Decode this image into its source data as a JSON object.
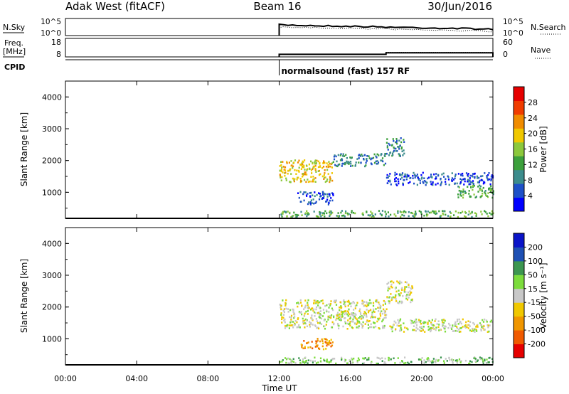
{
  "header": {
    "station": "Adak West (fitACF)",
    "beam": "Beam 16",
    "date": "30/Jun/2016"
  },
  "noise_panel": {
    "left_label": "N.Sky",
    "right_label": "N.Search",
    "left_ticks": [
      "10^5",
      "10^0"
    ],
    "right_ticks": [
      "10^5",
      "10^0"
    ]
  },
  "freq_panel": {
    "left_label_1": "Freq.",
    "left_label_2": "[MHz]",
    "right_label": "Nave",
    "left_ticks": [
      "18",
      "8"
    ],
    "right_ticks": [
      "60",
      "0"
    ],
    "freq_steps": [
      {
        "x": 12,
        "y": 10.0
      },
      {
        "x": 18,
        "y": 11.2
      }
    ],
    "nave_level": 15
  },
  "cpid_panel": {
    "label": "CPID",
    "program": "normalsound (fast) 157 RF",
    "start_hour": 12
  },
  "time_axis": {
    "xlabel": "Time UT",
    "tick_labels": [
      "00:00",
      "04:00",
      "08:00",
      "12:00",
      "16:00",
      "20:00",
      "00:00"
    ],
    "hours": [
      0,
      4,
      8,
      12,
      16,
      20,
      24
    ]
  },
  "colors": {
    "power": [
      "#0000ff",
      "#1e50c8",
      "#3c8c8c",
      "#3ca03c",
      "#8cc83c",
      "#f0c800",
      "#f08c00",
      "#f03c00",
      "#e60000"
    ],
    "velocity": [
      "#e60000",
      "#f05a00",
      "#f09600",
      "#f0c800",
      "#c8c8c8",
      "#7cdc3c",
      "#3c9650",
      "#1e50b4",
      "#0a14c8"
    ]
  },
  "chart_data": [
    {
      "type": "heatmap",
      "name": "power",
      "xlabel": "",
      "ylabel": "Slant Range [km]",
      "xlim": [
        0,
        24
      ],
      "ylim": [
        180,
        4500
      ],
      "yticks": [
        "1000",
        "2000",
        "3000",
        "4000"
      ],
      "colorbar_label": "Power [dB]",
      "colorbar_ticks": [
        "4",
        "8",
        "12",
        "16",
        "20",
        "24",
        "28"
      ],
      "regions": [
        {
          "t0": 12.0,
          "t1": 24.0,
          "r0": 200,
          "r1": 400,
          "level": 3
        },
        {
          "t0": 12.0,
          "t1": 15.0,
          "r0": 1300,
          "r1": 2000,
          "level": 5
        },
        {
          "t0": 15.0,
          "t1": 18.0,
          "r0": 1800,
          "r1": 2200,
          "level": 2
        },
        {
          "t0": 13.0,
          "t1": 15.0,
          "r0": 600,
          "r1": 1000,
          "level": 1
        },
        {
          "t0": 18.0,
          "t1": 24.0,
          "r0": 1200,
          "r1": 1600,
          "level": 1
        },
        {
          "t0": 22.0,
          "t1": 24.0,
          "r0": 800,
          "r1": 1200,
          "level": 3
        },
        {
          "t0": 18.0,
          "t1": 19.0,
          "r0": 2100,
          "r1": 2700,
          "level": 2
        }
      ]
    },
    {
      "type": "heatmap",
      "name": "velocity",
      "xlabel": "Time UT",
      "ylabel": "Slant Range [km]",
      "xlim": [
        0,
        24
      ],
      "ylim": [
        180,
        4500
      ],
      "yticks": [
        "1000",
        "2000",
        "3000",
        "4000"
      ],
      "colorbar_label": "Velocity [m s⁻¹]",
      "colorbar_ticks": [
        "-200",
        "-100",
        "-50",
        "-15",
        "15",
        "50",
        "100",
        "200"
      ],
      "regions": [
        {
          "t0": 12.0,
          "t1": 24.0,
          "r0": 200,
          "r1": 400,
          "level": 5
        },
        {
          "t0": 12.0,
          "t1": 18.0,
          "r0": 1300,
          "r1": 2200,
          "level": 4
        },
        {
          "t0": 13.2,
          "t1": 15.0,
          "r0": 650,
          "r1": 1000,
          "level": 2
        },
        {
          "t0": 18.0,
          "t1": 24.0,
          "r0": 1200,
          "r1": 1600,
          "level": 4
        },
        {
          "t0": 18.0,
          "t1": 19.5,
          "r0": 2100,
          "r1": 2800,
          "level": 4
        }
      ]
    }
  ]
}
